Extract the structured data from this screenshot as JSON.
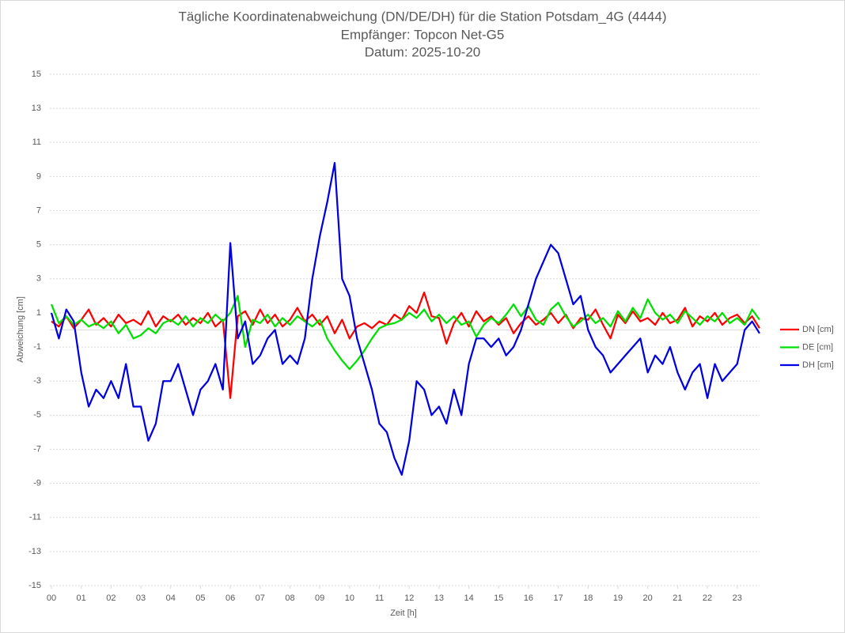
{
  "chart_data": {
    "type": "line",
    "title": "Tägliche Koordinatenabweichung (DN/DE/DH) für die Station Potsdam_4G (4444)",
    "subtitle": "Empfänger: Topcon Net-G5",
    "date_label": "Datum: 2025-10-20",
    "x_label": "Zeit [h]",
    "y_label": "Abweichung [cm]",
    "x": [
      0,
      0.25,
      0.5,
      0.75,
      1,
      1.25,
      1.5,
      1.75,
      2,
      2.25,
      2.5,
      2.75,
      3,
      3.25,
      3.5,
      3.75,
      4,
      4.25,
      4.5,
      4.75,
      5,
      5.25,
      5.5,
      5.75,
      6,
      6.25,
      6.5,
      6.75,
      7,
      7.25,
      7.5,
      7.75,
      8,
      8.25,
      8.5,
      8.75,
      9,
      9.25,
      9.5,
      9.75,
      10,
      10.25,
      10.5,
      10.75,
      11,
      11.25,
      11.5,
      11.75,
      12,
      12.25,
      12.5,
      12.75,
      13,
      13.25,
      13.5,
      13.75,
      14,
      14.25,
      14.5,
      14.75,
      15,
      15.25,
      15.5,
      15.75,
      16,
      16.25,
      16.5,
      16.75,
      17,
      17.25,
      17.5,
      17.75,
      18,
      18.25,
      18.5,
      18.75,
      19,
      19.25,
      19.5,
      19.75,
      20,
      20.25,
      20.5,
      20.75,
      21,
      21.25,
      21.5,
      21.75,
      22,
      22.25,
      22.5,
      22.75,
      23,
      23.25,
      23.5,
      23.75
    ],
    "series": [
      {
        "name": "DN [cm]",
        "color": "#ff0000",
        "values": [
          0.5,
          0.2,
          0.8,
          0.1,
          0.6,
          1.2,
          0.3,
          0.7,
          0.2,
          0.9,
          0.4,
          0.6,
          0.3,
          1.1,
          0.2,
          0.8,
          0.5,
          0.9,
          0.3,
          0.7,
          0.4,
          1.0,
          0.2,
          0.6,
          -4,
          0.8,
          1.1,
          0.3,
          1.2,
          0.4,
          0.9,
          0.2,
          0.6,
          1.3,
          0.5,
          0.9,
          0.3,
          0.8,
          -0.2,
          0.6,
          -0.5,
          0.2,
          0.4,
          0.1,
          0.5,
          0.3,
          0.9,
          0.6,
          1.4,
          1.0,
          2.2,
          0.8,
          0.7,
          -0.8,
          0.4,
          1.0,
          0.2,
          1.1,
          0.5,
          0.8,
          0.3,
          0.7,
          -0.2,
          0.4,
          0.8,
          0.3,
          0.6,
          1.0,
          0.4,
          0.9,
          0.1,
          0.7,
          0.6,
          1.2,
          0.3,
          -0.5,
          0.9,
          0.4,
          1.1,
          0.5,
          0.7,
          0.3,
          1.0,
          0.4,
          0.6,
          1.3,
          0.2,
          0.8,
          0.5,
          1.0,
          0.3,
          0.7,
          0.9,
          0.4,
          0.8,
          0.1
        ]
      },
      {
        "name": "DE [cm]",
        "color": "#00e000",
        "values": [
          1.5,
          0.4,
          0.8,
          0.3,
          0.6,
          0.2,
          0.4,
          0.1,
          0.5,
          -0.2,
          0.3,
          -0.5,
          -0.3,
          0.1,
          -0.2,
          0.4,
          0.6,
          0.3,
          0.8,
          0.2,
          0.7,
          0.4,
          0.9,
          0.5,
          1.0,
          2.0,
          -1.0,
          0.6,
          0.4,
          0.9,
          0.2,
          0.7,
          0.3,
          0.8,
          0.5,
          0.2,
          0.6,
          -0.5,
          -1.2,
          -1.8,
          -2.3,
          -1.8,
          -1.2,
          -0.5,
          0.1,
          0.3,
          0.4,
          0.6,
          1.0,
          0.7,
          1.2,
          0.5,
          0.9,
          0.4,
          0.8,
          0.3,
          0.5,
          -0.4,
          0.3,
          0.7,
          0.4,
          0.9,
          1.5,
          0.8,
          1.4,
          0.6,
          0.3,
          1.2,
          1.6,
          0.8,
          0.2,
          0.5,
          0.9,
          0.4,
          0.7,
          0.2,
          1.1,
          0.5,
          1.3,
          0.7,
          1.8,
          1.0,
          0.6,
          0.9,
          0.4,
          1.1,
          0.7,
          0.3,
          0.8,
          0.5,
          1.0,
          0.4,
          0.7,
          0.3,
          1.2,
          0.6
        ]
      },
      {
        "name": "DH [cm]",
        "color": "#0000e0",
        "values": [
          1,
          -0.5,
          1.2,
          0.5,
          -2.5,
          -4.5,
          -3.5,
          -4,
          -3,
          -4,
          -2,
          -4.5,
          -4.5,
          -6.5,
          -5.5,
          -3,
          -3,
          -2,
          -3.5,
          -5,
          -3.5,
          -3,
          -2,
          -3.5,
          5.1,
          -0.5,
          0.5,
          -2,
          -1.5,
          -0.5,
          0,
          -2,
          -1.5,
          -2,
          -0.5,
          3,
          5.5,
          7.5,
          9.8,
          3,
          2,
          -0.5,
          -2,
          -3.5,
          -5.5,
          -6,
          -7.5,
          -8.5,
          -6.5,
          -3,
          -3.5,
          -5,
          -4.5,
          -5.5,
          -3.5,
          -5,
          -2,
          -0.5,
          -0.5,
          -1,
          -0.5,
          -1.5,
          -1,
          0,
          1.5,
          3,
          4,
          5,
          4.5,
          3,
          1.5,
          2,
          0,
          -1,
          -1.5,
          -2.5,
          -2,
          -1.5,
          -1,
          -0.5,
          -2.5,
          -1.5,
          -2,
          -1,
          -2.5,
          -3.5,
          -2.5,
          -2,
          -4,
          -2,
          -3,
          -2.5,
          -2,
          0,
          0.5,
          -0.2
        ]
      }
    ],
    "xlim": [
      0,
      23.75
    ],
    "ylim": [
      -15,
      15
    ],
    "xticks": [
      {
        "value": 0,
        "label": "00"
      },
      {
        "value": 1,
        "label": "01"
      },
      {
        "value": 2,
        "label": "02"
      },
      {
        "value": 3,
        "label": "03"
      },
      {
        "value": 4,
        "label": "04"
      },
      {
        "value": 5,
        "label": "05"
      },
      {
        "value": 6,
        "label": "06"
      },
      {
        "value": 7,
        "label": "07"
      },
      {
        "value": 8,
        "label": "08"
      },
      {
        "value": 9,
        "label": "09"
      },
      {
        "value": 10,
        "label": "10"
      },
      {
        "value": 11,
        "label": "11"
      },
      {
        "value": 12,
        "label": "12"
      },
      {
        "value": 13,
        "label": "13"
      },
      {
        "value": 14,
        "label": "14"
      },
      {
        "value": 15,
        "label": "15"
      },
      {
        "value": 16,
        "label": "16"
      },
      {
        "value": 17,
        "label": "17"
      },
      {
        "value": 18,
        "label": "18"
      },
      {
        "value": 19,
        "label": "19"
      },
      {
        "value": 20,
        "label": "20"
      },
      {
        "value": 21,
        "label": "21"
      },
      {
        "value": 22,
        "label": "22"
      },
      {
        "value": 23,
        "label": "23"
      }
    ],
    "yticks": [
      -15,
      -13,
      -11,
      -9,
      -7,
      -5,
      -3,
      -1,
      1,
      3,
      5,
      7,
      9,
      11,
      13,
      15
    ],
    "grid": true,
    "legend": "right"
  }
}
